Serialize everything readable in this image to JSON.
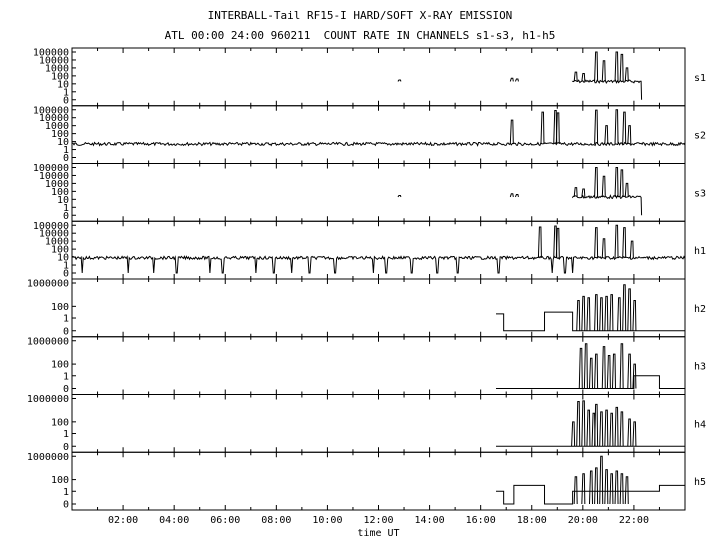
{
  "title": "INTERBALL-Tail RF15-I HARD/SOFT X-RAY EMISSION",
  "subtitle": "ATL 00:00 24:00 960211  COUNT RATE IN CHANNELS s1-s3, h1-h5",
  "chart_data": {
    "type": "line",
    "xlabel": "time UT",
    "x_unit": "hours UT",
    "xlim": [
      0,
      24
    ],
    "x_ticks": [
      2,
      4,
      6,
      8,
      10,
      12,
      14,
      16,
      18,
      20,
      22
    ],
    "x_tick_labels": [
      "02:00",
      "04:00",
      "06:00",
      "08:00",
      "10:00",
      "12:00",
      "14:00",
      "16:00",
      "18:00",
      "20:00",
      "22:00"
    ],
    "y_scale": "log",
    "panels": [
      {
        "name": "s1",
        "tick_labels": [
          "100000",
          "10000",
          "1000",
          "100",
          "10",
          "1",
          "0"
        ],
        "tick_values": [
          100000,
          10000,
          1000,
          100,
          10,
          1,
          0
        ],
        "baseline_start": 19.6,
        "baseline_level": 20,
        "data_end": 22.3,
        "spikes": [
          [
            12.8,
            30
          ],
          [
            17.2,
            50
          ],
          [
            17.4,
            40
          ],
          [
            19.7,
            300
          ],
          [
            20.0,
            200
          ],
          [
            20.5,
            100000
          ],
          [
            20.8,
            8000
          ],
          [
            21.3,
            200000
          ],
          [
            21.5,
            50000
          ],
          [
            21.7,
            1000
          ]
        ]
      },
      {
        "name": "s2",
        "tick_labels": [
          "100000",
          "10000",
          "1000",
          "100",
          "10",
          "1",
          "0"
        ],
        "tick_values": [
          100000,
          10000,
          1000,
          100,
          10,
          1,
          0
        ],
        "baseline_start": 0,
        "baseline_level": 5,
        "data_end": 24,
        "spikes": [
          [
            17.2,
            5000
          ],
          [
            18.4,
            50000
          ],
          [
            18.9,
            80000
          ],
          [
            19.0,
            40000
          ],
          [
            20.5,
            90000
          ],
          [
            20.9,
            1000
          ],
          [
            21.3,
            100000
          ],
          [
            21.6,
            50000
          ],
          [
            21.8,
            1000
          ]
        ]
      },
      {
        "name": "s3",
        "tick_labels": [
          "100000",
          "10000",
          "1000",
          "100",
          "10",
          "1",
          "0"
        ],
        "tick_values": [
          100000,
          10000,
          1000,
          100,
          10,
          1,
          0
        ],
        "baseline_start": 19.6,
        "baseline_level": 20,
        "data_end": 22.3,
        "spikes": [
          [
            12.8,
            30
          ],
          [
            17.2,
            50
          ],
          [
            17.4,
            40
          ],
          [
            19.7,
            300
          ],
          [
            20.0,
            200
          ],
          [
            20.5,
            100000
          ],
          [
            20.8,
            8000
          ],
          [
            21.3,
            200000
          ],
          [
            21.5,
            50000
          ],
          [
            21.7,
            1000
          ]
        ]
      },
      {
        "name": "h1",
        "tick_labels": [
          "100000",
          "10000",
          "1000",
          "100",
          "10",
          "1",
          "0"
        ],
        "tick_values": [
          100000,
          10000,
          1000,
          100,
          10,
          1,
          0
        ],
        "baseline_start": 0,
        "baseline_level": 8,
        "data_end": 24,
        "spikes": [
          [
            18.3,
            60000
          ],
          [
            18.9,
            80000
          ],
          [
            19.0,
            40000
          ],
          [
            20.5,
            50000
          ],
          [
            20.8,
            2000
          ],
          [
            21.3,
            100000
          ],
          [
            21.6,
            50000
          ],
          [
            21.9,
            1000
          ]
        ],
        "dropouts": [
          0.4,
          2.2,
          3.2,
          4.1,
          5.4,
          5.9,
          7.2,
          7.9,
          8.6,
          9.3,
          10.3,
          11.8,
          12.3,
          13.3,
          14.3,
          15.1,
          16.7,
          18.8,
          19.3,
          19.6
        ]
      },
      {
        "name": "h2",
        "tick_labels": [
          "1000000",
          "100",
          "1",
          "0"
        ],
        "tick_values": [
          1000000,
          100,
          1,
          0
        ],
        "steps": [
          [
            16.6,
            5
          ],
          [
            16.9,
            0
          ],
          [
            18.5,
            10
          ],
          [
            19.6,
            0
          ]
        ],
        "step_end": 24,
        "spikes": [
          [
            19.8,
            1000
          ],
          [
            20.0,
            5000
          ],
          [
            20.2,
            3000
          ],
          [
            20.5,
            10000
          ],
          [
            20.7,
            3000
          ],
          [
            20.9,
            5000
          ],
          [
            21.1,
            10000
          ],
          [
            21.4,
            3000
          ],
          [
            21.6,
            500000
          ],
          [
            21.8,
            100000
          ],
          [
            22.0,
            1000
          ]
        ]
      },
      {
        "name": "h3",
        "tick_labels": [
          "1000000",
          "100",
          "1",
          "0"
        ],
        "tick_values": [
          1000000,
          100,
          1,
          0
        ],
        "steps": [
          [
            16.6,
            0
          ],
          [
            22.0,
            1
          ],
          [
            23.0,
            0
          ]
        ],
        "step_end": 24,
        "spikes": [
          [
            19.9,
            50000
          ],
          [
            20.1,
            300000
          ],
          [
            20.3,
            1000
          ],
          [
            20.5,
            5000
          ],
          [
            20.8,
            100000
          ],
          [
            21.0,
            3000
          ],
          [
            21.2,
            5000
          ],
          [
            21.5,
            300000
          ],
          [
            21.8,
            5000
          ],
          [
            22.0,
            100
          ]
        ]
      },
      {
        "name": "h4",
        "tick_labels": [
          "1000000",
          "100",
          "1",
          "0"
        ],
        "tick_values": [
          1000000,
          100,
          1,
          0
        ],
        "steps": [
          [
            16.6,
            0
          ]
        ],
        "step_end": 24,
        "spikes": [
          [
            19.6,
            100
          ],
          [
            19.8,
            300000
          ],
          [
            20.0,
            400000
          ],
          [
            20.2,
            10000
          ],
          [
            20.4,
            3000
          ],
          [
            20.5,
            100000
          ],
          [
            20.7,
            5000
          ],
          [
            20.9,
            10000
          ],
          [
            21.1,
            3000
          ],
          [
            21.3,
            30000
          ],
          [
            21.5,
            5000
          ],
          [
            21.8,
            300
          ],
          [
            22.0,
            100
          ]
        ]
      },
      {
        "name": "h5",
        "tick_labels": [
          "1000000",
          "100",
          "1",
          "0"
        ],
        "tick_values": [
          1000000,
          100,
          1,
          0
        ],
        "steps": [
          [
            16.6,
            1
          ],
          [
            16.9,
            0
          ],
          [
            17.3,
            10
          ],
          [
            18.5,
            0
          ],
          [
            19.6,
            1
          ],
          [
            23.0,
            10
          ]
        ],
        "step_end": 24,
        "spikes": [
          [
            19.7,
            300
          ],
          [
            20.0,
            1000
          ],
          [
            20.3,
            3000
          ],
          [
            20.5,
            10000
          ],
          [
            20.7,
            2000000
          ],
          [
            20.9,
            5000
          ],
          [
            21.1,
            1000
          ],
          [
            21.3,
            3000
          ],
          [
            21.5,
            1000
          ],
          [
            21.7,
            300
          ]
        ]
      }
    ]
  }
}
